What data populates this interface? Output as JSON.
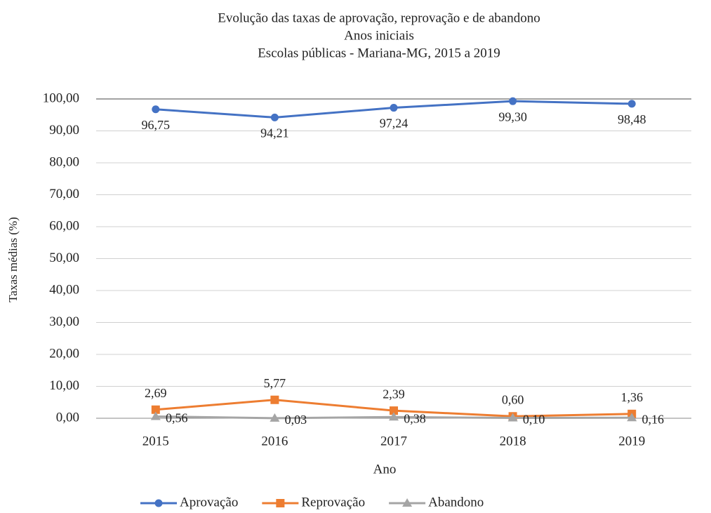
{
  "chart_data": {
    "type": "line",
    "title": "Evolução das taxas de aprovação, reprovação e de abandono",
    "subtitle": [
      "Anos iniciais",
      "Escolas públicas - Mariana-MG, 2015 a 2019"
    ],
    "y_label": "Taxas médias (%)",
    "x_label": "Ano",
    "categories": [
      "2015",
      "2016",
      "2017",
      "2018",
      "2019"
    ],
    "series": [
      {
        "name": "Aprovação",
        "color": "#4472c4",
        "marker": "circle",
        "values": [
          96.75,
          94.21,
          97.24,
          99.3,
          98.48
        ],
        "value_labels": [
          "96,75",
          "94,21",
          "97,24",
          "99,30",
          "98,48"
        ]
      },
      {
        "name": "Reprovação",
        "color": "#ed7d31",
        "marker": "square",
        "values": [
          2.69,
          5.77,
          2.39,
          0.6,
          1.36
        ],
        "value_labels": [
          "2,69",
          "5,77",
          "2,39",
          "0,60",
          "1,36"
        ]
      },
      {
        "name": "Abandono",
        "color": "#a5a5a5",
        "marker": "triangle",
        "values": [
          0.56,
          0.03,
          0.38,
          0.1,
          0.16
        ],
        "value_labels": [
          "0,56",
          "0,03",
          "0,38",
          "0,10",
          "0,16"
        ]
      }
    ],
    "ylim": [
      0,
      100
    ],
    "yticks": [
      {
        "value": 0,
        "label": "0,00"
      },
      {
        "value": 10,
        "label": "10,00"
      },
      {
        "value": 20,
        "label": "20,00"
      },
      {
        "value": 30,
        "label": "30,00"
      },
      {
        "value": 40,
        "label": "40,00"
      },
      {
        "value": 50,
        "label": "50,00"
      },
      {
        "value": 60,
        "label": "60,00"
      },
      {
        "value": 70,
        "label": "70,00"
      },
      {
        "value": 80,
        "label": "80,00"
      },
      {
        "value": 90,
        "label": "90,00"
      },
      {
        "value": 100,
        "label": "100,00"
      }
    ],
    "grid": true,
    "legend": "bottom"
  }
}
